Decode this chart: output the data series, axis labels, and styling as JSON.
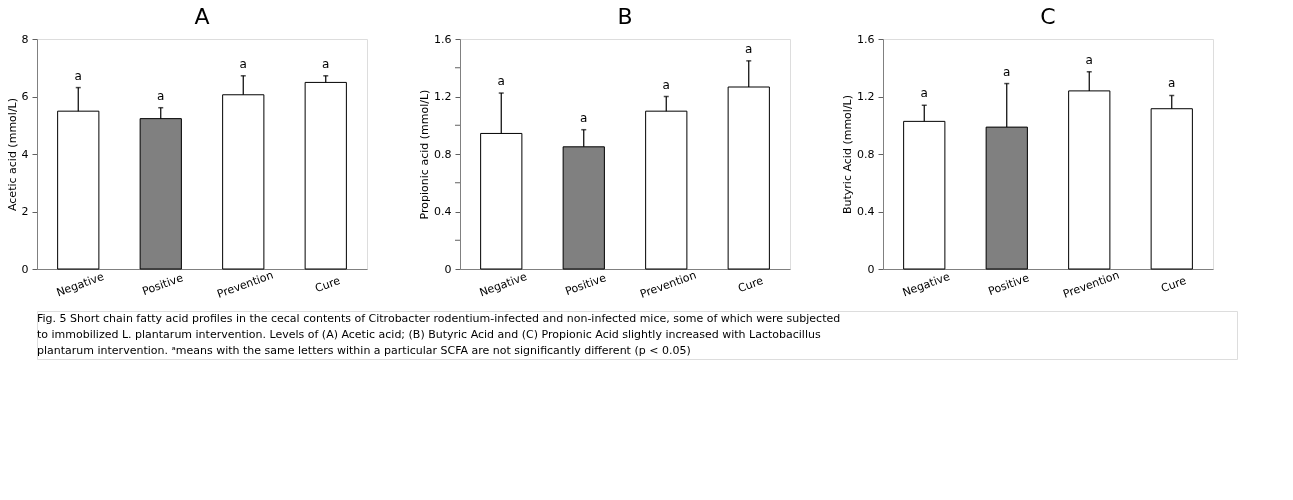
{
  "chart_data": [
    {
      "type": "bar",
      "title": "A",
      "ylabel": "Acetic acid  (mmol/L)",
      "categories": [
        "Negative",
        "Positive",
        "Prevention",
        "Cure"
      ],
      "values": [
        5.49,
        5.23,
        6.06,
        6.49
      ],
      "colors": [
        "#ffffff",
        "#808080",
        "#ffffff",
        "#ffffff"
      ],
      "errors": [
        [
          5.49,
          6.31
        ],
        [
          5.23,
          5.61
        ],
        [
          6.06,
          6.72
        ],
        [
          6.49,
          6.72
        ]
      ],
      "ylim": [
        0,
        8
      ],
      "yticks": [
        0,
        2,
        4,
        6,
        8
      ],
      "grid": false,
      "annotations": [
        "a",
        "a",
        "a",
        "a"
      ]
    },
    {
      "type": "bar",
      "title": "B",
      "ylabel": "Propionic acid (mmol/L)",
      "categories": [
        "Negative",
        "Positive",
        "Prevention",
        "Cure"
      ],
      "values": [
        0.943,
        0.85,
        1.098,
        1.266
      ],
      "colors": [
        "#ffffff",
        "#808080",
        "#ffffff",
        "#ffffff"
      ],
      "errors": [
        [
          0.943,
          1.224
        ],
        [
          0.85,
          0.969
        ],
        [
          1.098,
          1.2
        ],
        [
          1.266,
          1.448
        ]
      ],
      "ylim": [
        0,
        1.6
      ],
      "yticks": [
        0,
        {
          "value": 0.2,
          "label": null
        },
        0.4,
        {
          "value": 0.6,
          "label": null
        },
        0.8,
        {
          "value": 1.0,
          "label": null
        },
        1.2,
        {
          "value": 1.4,
          "label": null
        },
        1.6
      ],
      "grid": false,
      "annotations": [
        "a",
        "a",
        "a",
        "a"
      ]
    },
    {
      "type": "bar",
      "title": "C",
      "ylabel": "Butyric  Acid (mmol/L)",
      "categories": [
        "Negative",
        "Positive",
        "Prevention",
        "Cure"
      ],
      "values": [
        1.027,
        0.987,
        1.239,
        1.115
      ],
      "colors": [
        "#ffffff",
        "#808080",
        "#ffffff",
        "#ffffff"
      ],
      "errors": [
        [
          1.027,
          1.139
        ],
        [
          0.987,
          1.29
        ],
        [
          1.239,
          1.372
        ],
        [
          1.115,
          1.207
        ]
      ],
      "ylim": [
        0,
        1.6
      ],
      "yticks": [
        0,
        0.4,
        0.8,
        1.2,
        1.6
      ],
      "grid": false,
      "annotations": [
        "a",
        "a",
        "a",
        "a"
      ]
    },
    {
      "type": "other",
      "annotations": [
        "Fig. 5  Short chain fatty acid profiles in the cecal contents of Citrobacter rodentium-infected and non-infected mice, some of which were subjected",
        "to immobilized L. plantarum intervention. Levels of (A) Acetic acid; (B) Butyric Acid and (C) Propionic Acid slightly increased with Lactobacillus",
        "plantarum intervention. ᵃmeans with the same letters within a particular SCFA are not significantly different (p < 0.05)"
      ]
    }
  ]
}
